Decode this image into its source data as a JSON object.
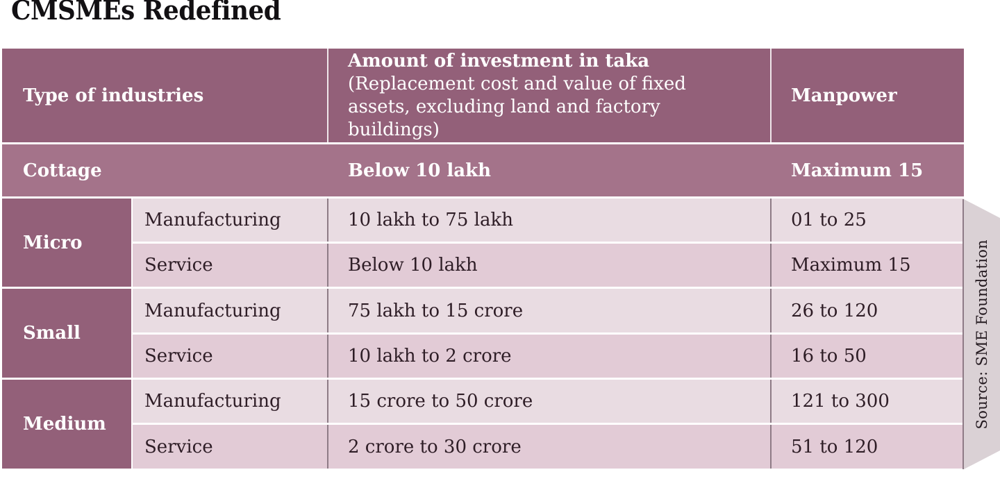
{
  "colors": {
    "header_bg": "#936079",
    "cottage_bg": "#A4738A",
    "row_light": "#E9DCE2",
    "row_dark": "#E2CBD6",
    "banner_bg": "#DAD1D5",
    "separator": "#8E7B86",
    "text_dark": "#2E1D26",
    "text_white": "#FFFFFF",
    "title_color": "#121013"
  },
  "chart_data": {
    "type": "table",
    "title": "CMSMEs Redefined",
    "source": "Source: SME Foundation",
    "columns": {
      "type": "Type of industries",
      "investment_title": "Amount of investment in taka",
      "investment_note": "(Replacement cost and value of fixed assets, excluding land and factory buildings)",
      "manpower": "Manpower"
    },
    "cottage": {
      "type": "Cottage",
      "investment": "Below 10 lakh",
      "manpower": "Maximum 15"
    },
    "groups": [
      {
        "type": "Micro",
        "rows": [
          {
            "category": "Manufacturing",
            "investment": "10 lakh to 75 lakh",
            "manpower": "01 to 25"
          },
          {
            "category": "Service",
            "investment": "Below 10 lakh",
            "manpower": "Maximum 15"
          }
        ]
      },
      {
        "type": "Small",
        "rows": [
          {
            "category": "Manufacturing",
            "investment": "75 lakh to 15 crore",
            "manpower": "26 to 120"
          },
          {
            "category": "Service",
            "investment": "10 lakh to 2 crore",
            "manpower": "16 to 50"
          }
        ]
      },
      {
        "type": "Medium",
        "rows": [
          {
            "category": "Manufacturing",
            "investment": "15 crore to 50 crore",
            "manpower": "121 to 300"
          },
          {
            "category": "Service",
            "investment": "2 crore to 30 crore",
            "manpower": "51 to 120"
          }
        ]
      }
    ]
  }
}
